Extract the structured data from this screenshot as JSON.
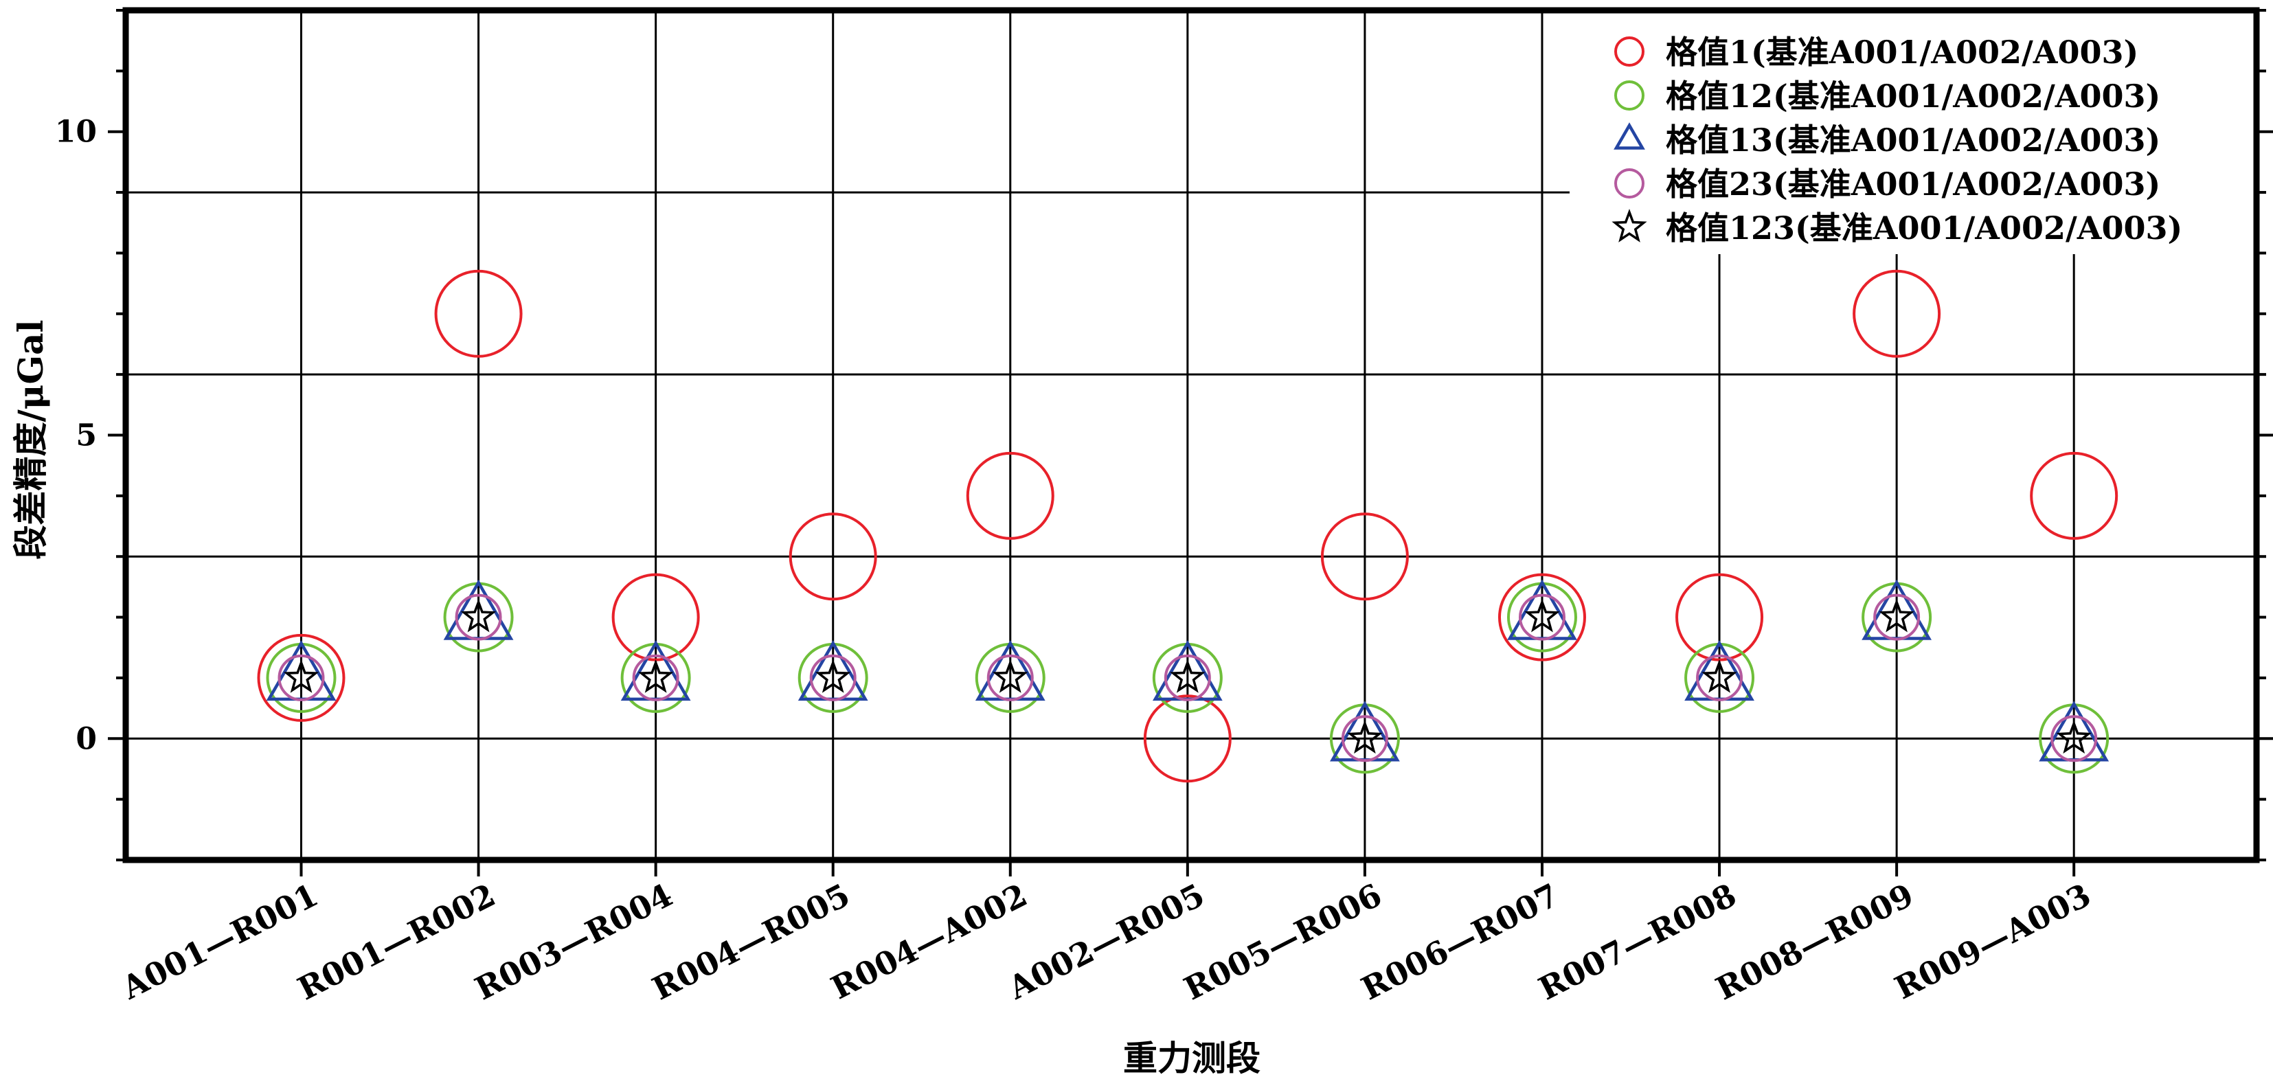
{
  "chart_data": {
    "type": "scatter",
    "xlabel": "重力测段",
    "ylabel": "段差精度/μGal",
    "categories": [
      "A001—R001",
      "R001—R002",
      "R003—R004",
      "R004—R005",
      "R004—A002",
      "A002—R005",
      "R005—R006",
      "R006—R007",
      "R007—R008",
      "R008—R009",
      "R009—A003"
    ],
    "yticks": [
      0,
      5,
      10
    ],
    "ylim": [
      -2,
      12
    ],
    "grid": true,
    "legend_position": "top-right",
    "series": [
      {
        "name": "格值1(基准A001/A002/A003)",
        "marker": "circle",
        "color": "#e8212a",
        "values": [
          1,
          7,
          2,
          3,
          4,
          0,
          3,
          2,
          2,
          7,
          4
        ]
      },
      {
        "name": "格值12(基准A001/A002/A003)",
        "marker": "circle",
        "color": "#6fbf3a",
        "values": [
          1,
          2,
          1,
          1,
          1,
          1,
          0,
          2,
          1,
          2,
          0
        ]
      },
      {
        "name": "格值13(基准A001/A002/A003)",
        "marker": "triangle",
        "color": "#2445a3",
        "values": [
          1,
          2,
          1,
          1,
          1,
          1,
          0,
          2,
          1,
          2,
          0
        ]
      },
      {
        "name": "格值23(基准A001/A002/A003)",
        "marker": "circle",
        "color": "#b55a9e",
        "values": [
          1,
          2,
          1,
          1,
          1,
          1,
          0,
          2,
          1,
          2,
          0
        ]
      },
      {
        "name": "格值123(基准A001/A002/A003)",
        "marker": "star",
        "color": "#000000",
        "values": [
          1,
          2,
          1,
          1,
          1,
          1,
          0,
          2,
          1,
          2,
          0
        ]
      }
    ]
  }
}
